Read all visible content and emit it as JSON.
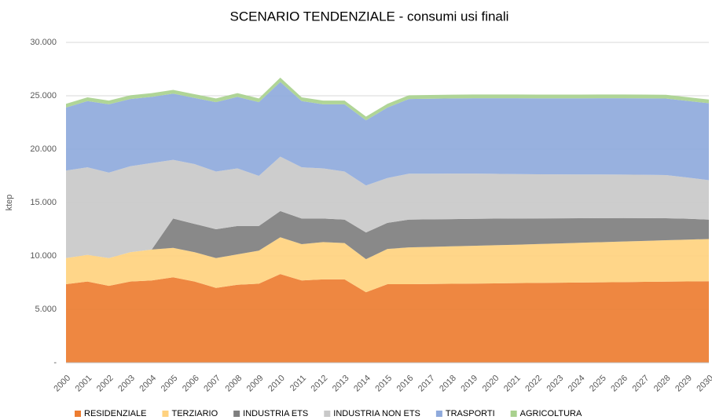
{
  "chart_data": {
    "type": "stacked-area",
    "title": "SCENARIO TENDENZIALE - consumi usi finali",
    "y_label": "ktep",
    "categories": [
      "2000",
      "2001",
      "2002",
      "2003",
      "2004",
      "2005",
      "2006",
      "2007",
      "2008",
      "2009",
      "2010",
      "2011",
      "2012",
      "2013",
      "2014",
      "2015",
      "2016",
      "2017",
      "2018",
      "2019",
      "2020",
      "2021",
      "2022",
      "2023",
      "2024",
      "2025",
      "2026",
      "2027",
      "2028",
      "2029",
      "2030"
    ],
    "series": [
      {
        "name": "RESIDENZIALE",
        "color": "#ed7d31",
        "values": [
          7350,
          7600,
          7200,
          7600,
          7700,
          8000,
          7600,
          7000,
          7300,
          7400,
          8300,
          7700,
          7800,
          7800,
          6600,
          7350,
          7350,
          7370,
          7390,
          7410,
          7430,
          7450,
          7470,
          7490,
          7510,
          7530,
          7550,
          7570,
          7590,
          7610,
          7630
        ]
      },
      {
        "name": "TERZIARIO",
        "color": "#ffd27f",
        "values": [
          2450,
          2500,
          2600,
          2750,
          2900,
          2750,
          2750,
          2800,
          2850,
          3100,
          3450,
          3400,
          3500,
          3400,
          3100,
          3300,
          3450,
          3480,
          3510,
          3540,
          3570,
          3600,
          3640,
          3680,
          3720,
          3760,
          3800,
          3840,
          3880,
          3920,
          3950
        ]
      },
      {
        "name": "INDUSTRIA ETS",
        "color": "#7f7f7f",
        "values": [
          0,
          0,
          0,
          0,
          0,
          2750,
          2650,
          2700,
          2650,
          2300,
          2450,
          2400,
          2200,
          2200,
          2500,
          2450,
          2600,
          2580,
          2550,
          2520,
          2490,
          2450,
          2400,
          2350,
          2300,
          2250,
          2200,
          2130,
          2060,
          1950,
          1820
        ]
      },
      {
        "name": "INDUSTRIA NON ETS",
        "color": "#c9c9c9",
        "values": [
          8200,
          8200,
          8000,
          8050,
          8100,
          5500,
          5600,
          5400,
          5400,
          4700,
          5100,
          4800,
          4700,
          4500,
          4400,
          4200,
          4300,
          4270,
          4260,
          4240,
          4200,
          4170,
          4140,
          4120,
          4100,
          4090,
          4070,
          4060,
          4040,
          3860,
          3700
        ]
      },
      {
        "name": "TRASPORTI",
        "color": "#8faadc",
        "values": [
          5900,
          6200,
          6400,
          6300,
          6200,
          6200,
          6200,
          6500,
          6700,
          6900,
          7000,
          6200,
          6000,
          6300,
          6100,
          6600,
          7000,
          7020,
          7040,
          7060,
          7080,
          7100,
          7110,
          7120,
          7130,
          7140,
          7150,
          7160,
          7170,
          7180,
          7200
        ]
      },
      {
        "name": "AGRICOLTURA",
        "color": "#a9d18e",
        "values": [
          350,
          350,
          350,
          350,
          350,
          350,
          350,
          350,
          350,
          350,
          400,
          350,
          350,
          350,
          350,
          350,
          350,
          350,
          350,
          350,
          350,
          350,
          350,
          350,
          350,
          350,
          350,
          350,
          350,
          350,
          350
        ]
      }
    ],
    "ylim": [
      0,
      30000
    ],
    "yticks": [
      {
        "value": 0,
        "label": "-"
      },
      {
        "value": 5000,
        "label": "5.000"
      },
      {
        "value": 10000,
        "label": "10.000"
      },
      {
        "value": 15000,
        "label": "15.000"
      },
      {
        "value": 20000,
        "label": "20.000"
      },
      {
        "value": 25000,
        "label": "25.000"
      },
      {
        "value": 30000,
        "label": "30.000"
      }
    ],
    "grid": true,
    "legend": "bottom"
  }
}
